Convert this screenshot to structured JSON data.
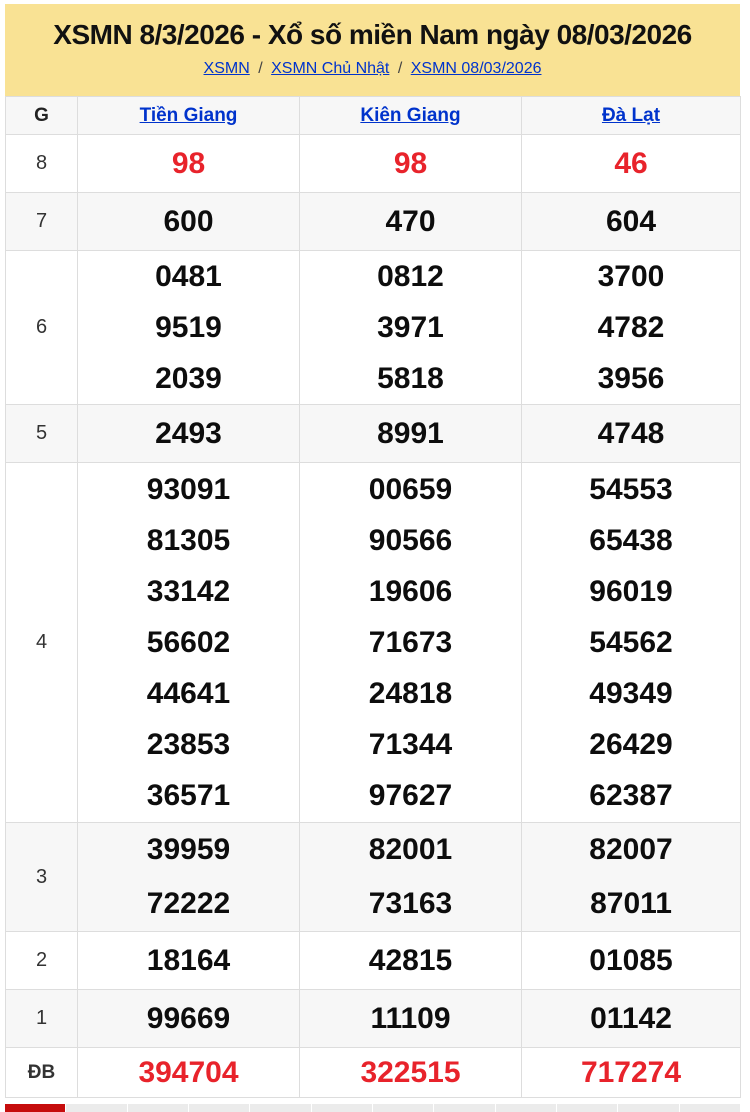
{
  "header": {
    "title": "XSMN 8/3/2026 - Xổ số miền Nam ngày 08/03/2026",
    "separator": "/",
    "breadcrumb": [
      "XSMN",
      "XSMN Chủ Nhật",
      "XSMN 08/03/2026"
    ]
  },
  "table": {
    "prize_header": "G",
    "provinces": [
      "Tiền Giang",
      "Kiên Giang",
      "Đà Lạt"
    ],
    "rows": [
      {
        "prize": "8",
        "cols": [
          [
            "98"
          ],
          [
            "98"
          ],
          [
            "46"
          ]
        ]
      },
      {
        "prize": "7",
        "cols": [
          [
            "600"
          ],
          [
            "470"
          ],
          [
            "604"
          ]
        ]
      },
      {
        "prize": "6",
        "cols": [
          [
            "0481",
            "9519",
            "2039"
          ],
          [
            "0812",
            "3971",
            "5818"
          ],
          [
            "3700",
            "4782",
            "3956"
          ]
        ]
      },
      {
        "prize": "5",
        "cols": [
          [
            "2493"
          ],
          [
            "8991"
          ],
          [
            "4748"
          ]
        ]
      },
      {
        "prize": "4",
        "cols": [
          [
            "93091",
            "81305",
            "33142",
            "56602",
            "44641",
            "23853",
            "36571"
          ],
          [
            "00659",
            "90566",
            "19606",
            "71673",
            "24818",
            "71344",
            "97627"
          ],
          [
            "54553",
            "65438",
            "96019",
            "54562",
            "49349",
            "26429",
            "62387"
          ]
        ]
      },
      {
        "prize": "3",
        "cols": [
          [
            "39959",
            "72222"
          ],
          [
            "82001",
            "73163"
          ],
          [
            "82007",
            "87011"
          ]
        ]
      },
      {
        "prize": "2",
        "cols": [
          [
            "18164"
          ],
          [
            "42815"
          ],
          [
            "01085"
          ]
        ]
      },
      {
        "prize": "1",
        "cols": [
          [
            "99669"
          ],
          [
            "11109"
          ],
          [
            "01142"
          ]
        ]
      },
      {
        "prize": "ĐB",
        "cols": [
          [
            "394704"
          ],
          [
            "322515"
          ],
          [
            "717274"
          ]
        ]
      }
    ]
  },
  "colors": {
    "banner_yellow": "#f9e294",
    "link_blue": "#0033cc",
    "prize_red": "#e8232b",
    "stripe_gray": "#f7f7f7",
    "border_gray": "#dddddd",
    "strip_active_red": "#c60d0d",
    "strip_gray": "#ebebeb"
  }
}
